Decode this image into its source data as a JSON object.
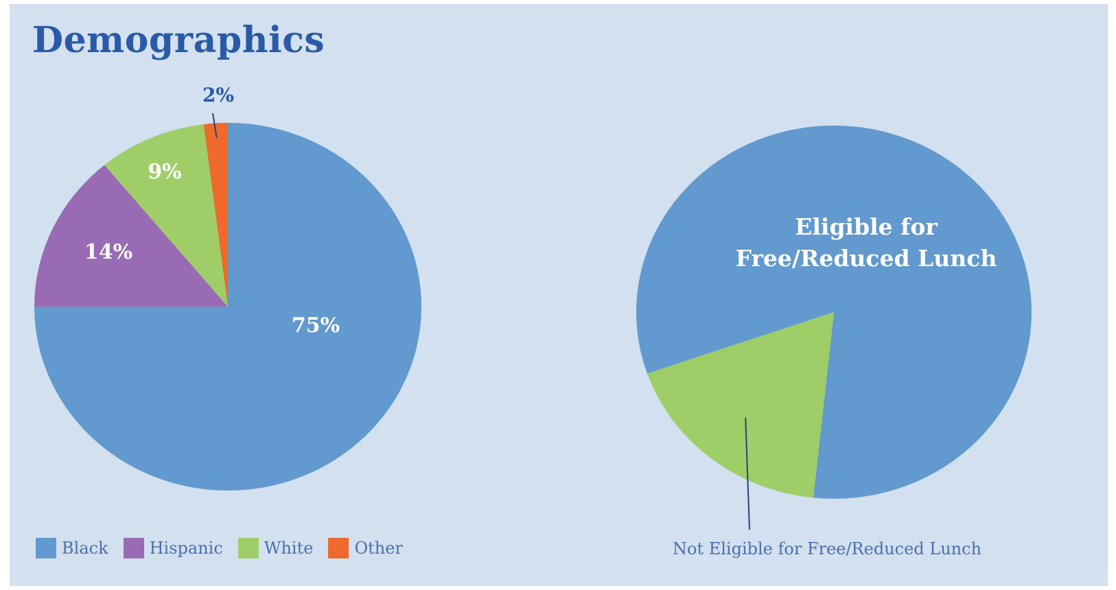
{
  "title": "Demographics",
  "colors": {
    "background": "#d2e0ef",
    "title": "#2a5aa6",
    "black": "#6299ce",
    "hispanic": "#9a6bb5",
    "white": "#9fcd68",
    "other": "#ee6a2c",
    "eligible": "#6299ce",
    "not_eligible": "#9fcd68",
    "leader_line": "#23467a"
  },
  "chart_data": [
    {
      "type": "pie",
      "title": "",
      "slices": [
        {
          "name": "Black",
          "value": 75,
          "label": "75%",
          "color": "#6299ce"
        },
        {
          "name": "Hispanic",
          "value": 14,
          "label": "14%",
          "color": "#9a6bb5"
        },
        {
          "name": "White",
          "value": 9,
          "label": "9%",
          "color": "#9fcd68"
        },
        {
          "name": "Other",
          "value": 2,
          "label": "2%",
          "color": "#ee6a2c"
        }
      ],
      "legend": {
        "placement": "bottom-left",
        "entries": [
          "Black",
          "Hispanic",
          "White",
          "Other"
        ]
      }
    },
    {
      "type": "pie",
      "title": "",
      "slices": [
        {
          "name": "Eligible for Free/Reduced Lunch",
          "value": 82,
          "label_lines": [
            "Eligible for",
            "Free/Reduced Lunch"
          ],
          "color": "#6299ce"
        },
        {
          "name": "Not Eligible for Free/Reduced Lunch",
          "value": 18,
          "label": "Not Eligible for Free/Reduced Lunch",
          "color": "#9fcd68"
        }
      ]
    }
  ]
}
